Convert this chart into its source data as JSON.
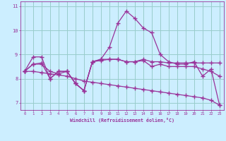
{
  "title": "",
  "xlabel": "Windchill (Refroidissement éolien,°C)",
  "ylabel": "",
  "bg_color": "#cceeff",
  "line_color": "#993399",
  "grid_color": "#99cccc",
  "x": [
    0,
    1,
    2,
    3,
    4,
    5,
    6,
    7,
    8,
    9,
    10,
    11,
    12,
    13,
    14,
    15,
    16,
    17,
    18,
    19,
    20,
    21,
    22,
    23
  ],
  "line1": [
    8.3,
    8.6,
    8.6,
    8.3,
    8.2,
    8.3,
    7.8,
    7.5,
    8.7,
    8.8,
    9.3,
    10.3,
    10.8,
    10.5,
    10.1,
    9.9,
    9.0,
    8.7,
    8.6,
    8.6,
    8.7,
    8.1,
    8.4,
    6.9
  ],
  "line2": [
    8.3,
    8.9,
    8.9,
    8.0,
    8.3,
    8.3,
    7.8,
    7.5,
    8.7,
    8.8,
    8.8,
    8.8,
    8.7,
    8.7,
    8.8,
    8.7,
    8.7,
    8.65,
    8.65,
    8.65,
    8.65,
    8.65,
    8.65,
    8.65
  ],
  "line3": [
    8.3,
    8.6,
    8.65,
    8.0,
    8.3,
    8.3,
    7.8,
    7.5,
    8.7,
    8.75,
    8.8,
    8.8,
    8.7,
    8.7,
    8.75,
    8.5,
    8.6,
    8.5,
    8.5,
    8.5,
    8.5,
    8.4,
    8.3,
    8.1
  ],
  "line4": [
    8.3,
    8.3,
    8.25,
    8.2,
    8.15,
    8.1,
    8.0,
    7.9,
    7.85,
    7.8,
    7.75,
    7.7,
    7.65,
    7.6,
    7.55,
    7.5,
    7.45,
    7.4,
    7.35,
    7.3,
    7.25,
    7.2,
    7.1,
    6.9
  ],
  "ylim": [
    6.7,
    11.2
  ],
  "yticks": [
    7,
    8,
    9,
    10,
    11
  ],
  "xticks": [
    0,
    1,
    2,
    3,
    4,
    5,
    6,
    7,
    8,
    9,
    10,
    11,
    12,
    13,
    14,
    15,
    16,
    17,
    18,
    19,
    20,
    21,
    22,
    23
  ],
  "marker": "+",
  "markersize": 4.0,
  "linewidth": 0.9
}
